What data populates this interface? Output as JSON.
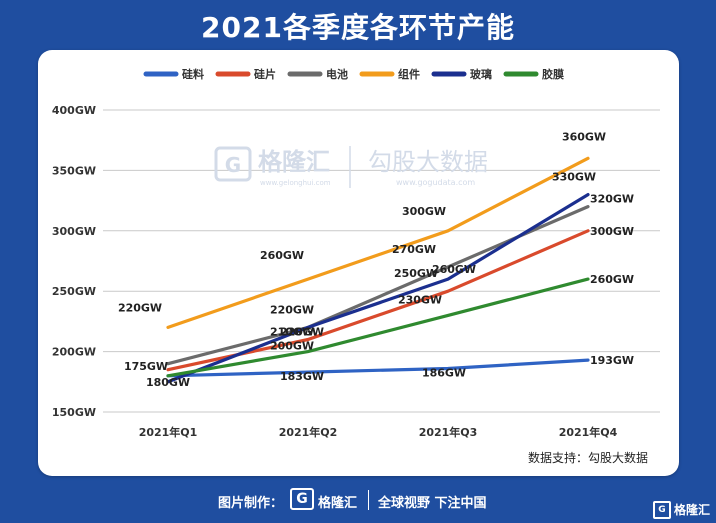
{
  "page_title": "2021各季度各环节产能",
  "source_note": "数据支持：勾股大数据",
  "watermark": {
    "brand": "格隆汇",
    "brand_domain": "www.gelonghui.com",
    "partner": "勾股大数据",
    "partner_domain": "www.gogudata.com"
  },
  "footer": {
    "credit_label": "图片制作：",
    "brand_mark": "G",
    "brand_name": "格隆汇",
    "slogan": "全球视野 下注中国"
  },
  "corner_logo": {
    "mark": "G",
    "name": "格隆汇"
  },
  "colors": {
    "background": "#1f4ea0",
    "panel": "#ffffff",
    "grid": "#c9c9c9"
  },
  "chart_data": {
    "type": "line",
    "categories": [
      "2021年Q1",
      "2021年Q2",
      "2021年Q3",
      "2021年Q4"
    ],
    "ylim": [
      150,
      400
    ],
    "yticks": [
      150,
      200,
      250,
      300,
      350,
      400
    ],
    "ytick_labels": [
      "150GW",
      "200GW",
      "250GW",
      "300GW",
      "350GW",
      "400GW"
    ],
    "grid": true,
    "legend_position": "top",
    "series": [
      {
        "name": "硅料",
        "color": "#2f63c4",
        "values": [
          180,
          183,
          186,
          193
        ],
        "labels": [
          "180GW",
          "183GW",
          "186GW",
          "193GW"
        ]
      },
      {
        "name": "硅片",
        "color": "#d94a2c",
        "values": [
          185,
          210,
          250,
          300
        ],
        "labels": [
          "",
          "210GW",
          "250GW",
          "300GW"
        ]
      },
      {
        "name": "电池",
        "color": "#6b6b6b",
        "values": [
          190,
          220,
          270,
          320
        ],
        "labels": [
          "",
          "220GW",
          "270GW",
          "320GW"
        ]
      },
      {
        "name": "组件",
        "color": "#f29c1c",
        "values": [
          220,
          260,
          300,
          360
        ],
        "labels": [
          "220GW",
          "260GW",
          "300GW",
          "360GW"
        ]
      },
      {
        "name": "玻璃",
        "color": "#1b2f8f",
        "values": [
          175,
          220,
          260,
          330
        ],
        "labels": [
          "175GW",
          "220GW",
          "260GW",
          "330GW"
        ]
      },
      {
        "name": "胶膜",
        "color": "#2f8a2f",
        "values": [
          180,
          200,
          230,
          260
        ],
        "labels": [
          "",
          "200GW",
          "230GW",
          "260GW"
        ]
      }
    ]
  }
}
